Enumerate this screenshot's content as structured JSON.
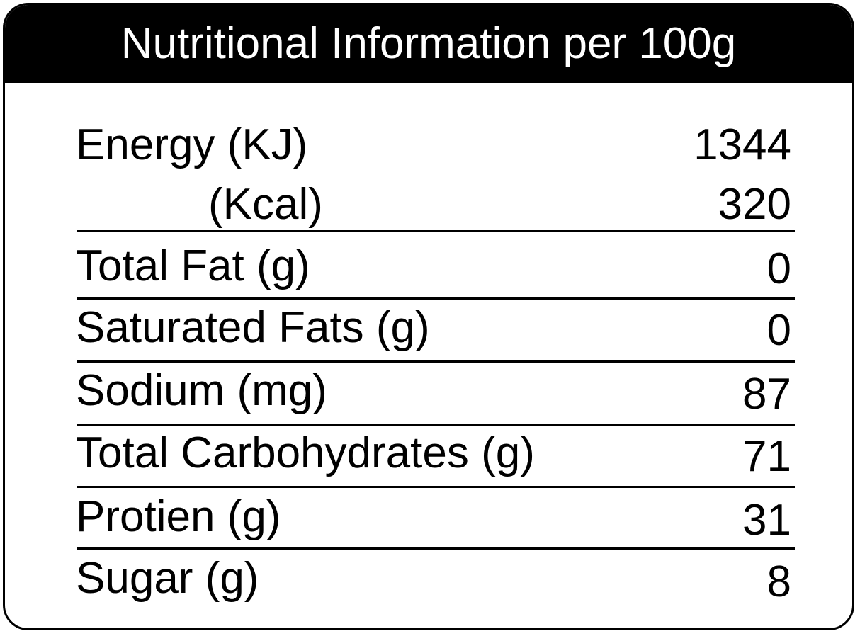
{
  "title": "Nutritional Information per 100g",
  "rows": [
    {
      "label": "Energy (KJ)",
      "value": "1344"
    },
    {
      "label": "(Kcal)",
      "value": "320"
    },
    {
      "label": "Total Fat (g)",
      "value": "0"
    },
    {
      "label": "Saturated Fats (g)",
      "value": "0"
    },
    {
      "label": "Sodium (mg)",
      "value": "87"
    },
    {
      "label": "Total Carbohydrates (g)",
      "value": "71"
    },
    {
      "label": "Protien (g)",
      "value": "31"
    },
    {
      "label": "Sugar (g)",
      "value": "8"
    }
  ]
}
